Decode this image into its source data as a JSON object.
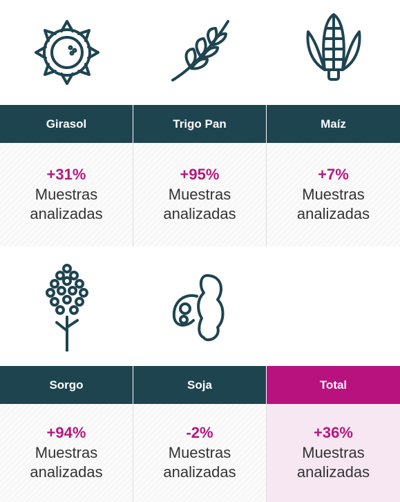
{
  "rows": [
    {
      "cells": [
        {
          "crop": "Girasol",
          "value": "+31%",
          "label": "Muestras analizadas"
        },
        {
          "crop": "Trigo Pan",
          "value": "+95%",
          "label": "Muestras analizadas"
        },
        {
          "crop": "Maíz",
          "value": "+7%",
          "label": "Muestras analizadas"
        }
      ]
    },
    {
      "cells": [
        {
          "crop": "Sorgo",
          "value": "+94%",
          "label": "Muestras analizadas"
        },
        {
          "crop": "Soja",
          "value": "-2%",
          "label": "Muestras analizadas"
        },
        {
          "crop": "Total",
          "value": "+36%",
          "label": "Muestras analizadas"
        }
      ]
    }
  ]
}
